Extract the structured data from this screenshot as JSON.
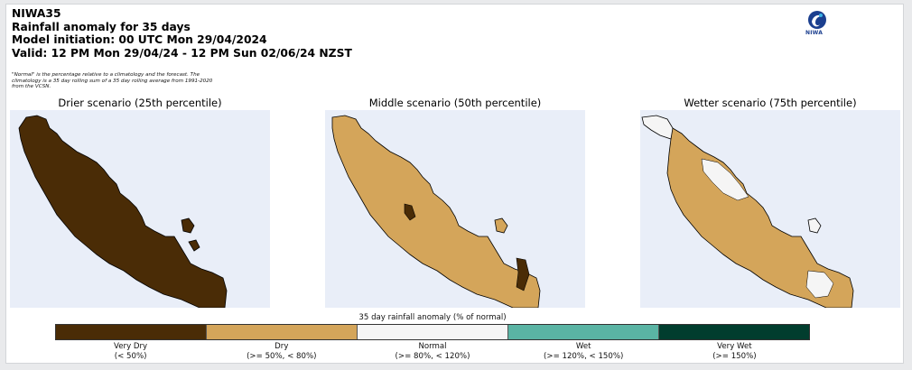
{
  "header": {
    "line1": "NIWA35",
    "line2": "Rainfall anomaly for 35 days",
    "line3": "Model initiation: 00 UTC Mon 29/04/2024",
    "line4": "Valid: 12 PM Mon 29/04/24 - 12 PM Sun 02/06/24 NZST"
  },
  "note": "\"Normal\" is the percentage relative to a climatology and the forecast. The climatology is a 35 day rolling sum of a 35 day rolling average from 1991-2020 from the VCSN.",
  "logo": {
    "text": "NIWA",
    "icon": "niwa-logo-icon"
  },
  "panels": [
    {
      "title": "Drier scenario (25th percentile)",
      "dominant": "Very Dry"
    },
    {
      "title": "Middle scenario (50th percentile)",
      "dominant": "Dry"
    },
    {
      "title": "Wetter scenario (75th percentile)",
      "dominant": "Dry"
    }
  ],
  "colorbar": {
    "title": "35 day rainfall anomaly (% of normal)",
    "categories": [
      {
        "name": "Very Dry",
        "range": "(< 50%)",
        "color": "#4a2c06"
      },
      {
        "name": "Dry",
        "range": "(>= 50%, < 80%)",
        "color": "#d4a55a"
      },
      {
        "name": "Normal",
        "range": "(>= 80%, < 120%)",
        "color": "#f5f5f5"
      },
      {
        "name": "Wet",
        "range": "(>= 120%, < 150%)",
        "color": "#5ab4a4"
      },
      {
        "name": "Very Wet",
        "range": "(>= 150%)",
        "color": "#013d2e"
      }
    ]
  },
  "colors": {
    "ocean": "#e9eef8",
    "outline": "#000000"
  }
}
